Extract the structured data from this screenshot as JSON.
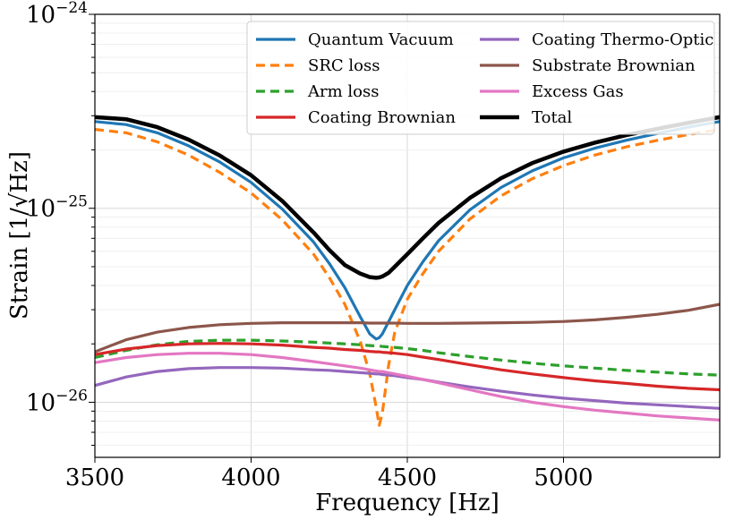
{
  "chart_data": {
    "type": "line",
    "xlabel": "Frequency [Hz]",
    "ylabel": "Strain [1/√Hz]",
    "x_scale": "linear",
    "y_scale": "log",
    "xlim": [
      3500,
      5500
    ],
    "ylim": [
      5.2e-27,
      1e-24
    ],
    "x_ticks": [
      3500,
      4000,
      4500,
      5000
    ],
    "y_ticks": [
      {
        "base": "10",
        "exp": "−24",
        "value": 1e-24
      },
      {
        "base": "10",
        "exp": "−25",
        "value": 1e-25
      },
      {
        "base": "10",
        "exp": "−26",
        "value": 1e-26
      }
    ],
    "grid": true,
    "legend_position": "top-right",
    "x": [
      3500,
      3600,
      3700,
      3800,
      3900,
      4000,
      4100,
      4200,
      4250,
      4300,
      4350,
      4380,
      4400,
      4410,
      4420,
      4440,
      4460,
      4500,
      4550,
      4600,
      4700,
      4800,
      4900,
      5000,
      5100,
      5200,
      5300,
      5400,
      5500
    ],
    "series": [
      {
        "name": "Quantum Vacuum",
        "color": "#1f77b4",
        "dash": "solid",
        "values": [
          2.8e-25,
          2.7e-25,
          2.45e-25,
          2.1e-25,
          1.73e-25,
          1.36e-25,
          9.9e-26,
          6.7e-26,
          5.2e-26,
          3.9e-26,
          2.75e-26,
          2.25e-26,
          2.12e-26,
          2.15e-26,
          2.25e-26,
          2.6e-26,
          3e-26,
          4e-26,
          5.3e-26,
          6.8e-26,
          9.8e-26,
          1.28e-25,
          1.56e-25,
          1.82e-25,
          2.04e-25,
          2.24e-25,
          2.43e-25,
          2.62e-25,
          2.8e-25
        ]
      },
      {
        "name": "SRC loss",
        "color": "#ff7f0e",
        "dash": "dashed",
        "values": [
          2.55e-25,
          2.45e-25,
          2.2e-25,
          1.88e-25,
          1.53e-25,
          1.2e-25,
          8.7e-26,
          5.8e-26,
          4.4e-26,
          3.2e-26,
          2.05e-26,
          1.4e-26,
          9.5e-27,
          7.6e-27,
          8.8e-27,
          1.55e-26,
          2.3e-26,
          3.4e-26,
          4.6e-26,
          6e-26,
          8.8e-26,
          1.16e-25,
          1.42e-25,
          1.66e-25,
          1.88e-25,
          2.07e-25,
          2.24e-25,
          2.4e-25,
          2.55e-25
        ]
      },
      {
        "name": "Arm loss",
        "color": "#2ca02c",
        "dash": "dashed",
        "values": [
          1.7e-26,
          1.85e-26,
          1.98e-26,
          2.06e-26,
          2.09e-26,
          2.09e-26,
          2.07e-26,
          2.04e-26,
          2.02e-26,
          2e-26,
          1.98e-26,
          1.96e-26,
          1.95e-26,
          1.95e-26,
          1.94e-26,
          1.93e-26,
          1.92e-26,
          1.89e-26,
          1.85e-26,
          1.8e-26,
          1.72e-26,
          1.65e-26,
          1.59e-26,
          1.54e-26,
          1.5e-26,
          1.46e-26,
          1.43e-26,
          1.4e-26,
          1.38e-26
        ]
      },
      {
        "name": "Coating Brownian",
        "color": "#d62728",
        "dash": "solid",
        "values": [
          1.76e-26,
          1.88e-26,
          1.96e-26,
          2e-26,
          2.01e-26,
          2e-26,
          1.97e-26,
          1.92e-26,
          1.9e-26,
          1.87e-26,
          1.85e-26,
          1.83e-26,
          1.82e-26,
          1.82e-26,
          1.81e-26,
          1.8e-26,
          1.79e-26,
          1.76e-26,
          1.71e-26,
          1.66e-26,
          1.56e-26,
          1.47e-26,
          1.4e-26,
          1.34e-26,
          1.29e-26,
          1.25e-26,
          1.21e-26,
          1.18e-26,
          1.16e-26
        ]
      },
      {
        "name": "Coating Thermo-Optic",
        "color": "#9467bd",
        "dash": "solid",
        "values": [
          1.22e-26,
          1.35e-26,
          1.44e-26,
          1.49e-26,
          1.51e-26,
          1.51e-26,
          1.5e-26,
          1.47e-26,
          1.46e-26,
          1.44e-26,
          1.42e-26,
          1.41e-26,
          1.4e-26,
          1.4e-26,
          1.39e-26,
          1.38e-26,
          1.37e-26,
          1.34e-26,
          1.31e-26,
          1.27e-26,
          1.2e-26,
          1.14e-26,
          1.09e-26,
          1.05e-26,
          1.02e-26,
          9.9e-27,
          9.7e-27,
          9.5e-27,
          9.3e-27
        ]
      },
      {
        "name": "Substrate Brownian",
        "color": "#8c564b",
        "dash": "solid",
        "values": [
          1.82e-26,
          2.1e-26,
          2.3e-26,
          2.43e-26,
          2.51e-26,
          2.55e-26,
          2.57e-26,
          2.57e-26,
          2.57e-26,
          2.57e-26,
          2.57e-26,
          2.56e-26,
          2.56e-26,
          2.56e-26,
          2.56e-26,
          2.56e-26,
          2.56e-26,
          2.55e-26,
          2.55e-26,
          2.55e-26,
          2.56e-26,
          2.57e-26,
          2.58e-26,
          2.61e-26,
          2.66e-26,
          2.74e-26,
          2.84e-26,
          2.98e-26,
          3.2e-26
        ]
      },
      {
        "name": "Excess Gas",
        "color": "#e377c2",
        "dash": "solid",
        "values": [
          1.6e-26,
          1.7e-26,
          1.76e-26,
          1.79e-26,
          1.79e-26,
          1.76e-26,
          1.7e-26,
          1.62e-26,
          1.58e-26,
          1.54e-26,
          1.5e-26,
          1.47e-26,
          1.45e-26,
          1.44e-26,
          1.44e-26,
          1.42e-26,
          1.4e-26,
          1.36e-26,
          1.31e-26,
          1.26e-26,
          1.16e-26,
          1.07e-26,
          1e-26,
          9.5e-27,
          9.1e-27,
          8.8e-27,
          8.5e-27,
          8.3e-27,
          8.1e-27
        ]
      },
      {
        "name": "Total",
        "color": "#000000",
        "dash": "solid",
        "values": [
          2.95e-25,
          2.88e-25,
          2.62e-25,
          2.26e-25,
          1.87e-25,
          1.48e-25,
          1.09e-25,
          7.5e-26,
          6.1e-26,
          5.1e-26,
          4.6e-26,
          4.42e-26,
          4.38e-26,
          4.4e-26,
          4.45e-26,
          4.65e-26,
          5e-26,
          5.8e-26,
          7e-26,
          8.4e-26,
          1.13e-25,
          1.43e-25,
          1.71e-25,
          1.96e-25,
          2.18e-25,
          2.38e-25,
          2.57e-25,
          2.76e-25,
          2.95e-25
        ]
      }
    ],
    "legend_columns": [
      [
        "Quantum Vacuum",
        "SRC loss",
        "Arm loss",
        "Coating Brownian"
      ],
      [
        "Coating Thermo-Optic",
        "Substrate Brownian",
        "Excess Gas",
        "Total"
      ]
    ]
  }
}
